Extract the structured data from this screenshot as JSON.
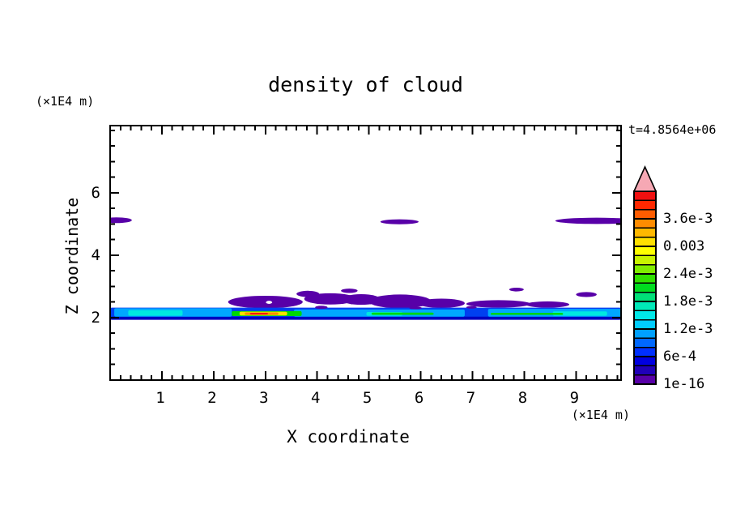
{
  "title": "density of cloud",
  "time_label": "t=4.8564e+06",
  "axes": {
    "x": {
      "label": "X coordinate",
      "unit": "(×1E4 m)",
      "min": 0,
      "max": 9.87,
      "major_ticks": [
        1,
        2,
        3,
        4,
        5,
        6,
        7,
        8,
        9
      ],
      "tick_labels": [
        "1",
        "2",
        "3",
        "4",
        "5",
        "6",
        "7",
        "8",
        "9"
      ],
      "minor_step": 0.2
    },
    "z": {
      "label": "Z coordinate",
      "unit": "(×1E4 m)",
      "min": 0,
      "max": 8.15,
      "major_ticks": [
        2,
        4,
        6
      ],
      "tick_labels": [
        "2",
        "4",
        "6"
      ],
      "minor_step": 0.5
    }
  },
  "colorbar": {
    "labels": [
      "1e-16",
      "6e-4",
      "1.2e-3",
      "1.8e-3",
      "2.4e-3",
      "0.003",
      "3.6e-3"
    ],
    "label_every_n_segments": 3,
    "segments_bottom_to_top": [
      "#5800A8",
      "#2000B8",
      "#0000E0",
      "#0030FF",
      "#0068FF",
      "#00A0FF",
      "#00CCFF",
      "#00E8E8",
      "#00E8B8",
      "#00E078",
      "#00DC20",
      "#30E000",
      "#80EC00",
      "#C8F400",
      "#FFFF00",
      "#FFE000",
      "#FFB800",
      "#FF8C00",
      "#FF5C00",
      "#FF2800",
      "#F01010"
    ],
    "overflow_arrow_color": "#F6A8B4",
    "outline_color": "#000000"
  },
  "chart_data": {
    "type": "filled_contour",
    "title": "density of cloud",
    "xlabel": "X coordinate",
    "ylabel": "Z coordinate",
    "units": "×1E4 m",
    "time": "t=4.8564e+06",
    "xlim": [
      0,
      9.87
    ],
    "ylim": [
      0,
      8.15
    ],
    "grid": false,
    "contour_levels_labeled": [
      "1e-16",
      "6e-4",
      "1.2e-3",
      "1.8e-3",
      "2.4e-3",
      "0.003",
      "3.6e-3"
    ],
    "features": [
      {
        "type": "ellipse",
        "name": "upper-cloud-left",
        "cx": 0.12,
        "cz": 5.12,
        "rx": 0.3,
        "rz": 0.09,
        "color": "#5800A8"
      },
      {
        "type": "ellipse",
        "name": "upper-cloud-mid",
        "cx": 5.59,
        "cz": 5.07,
        "rx": 0.37,
        "rz": 0.08,
        "color": "#5800A8"
      },
      {
        "type": "ellipse",
        "name": "upper-cloud-right",
        "cx": 9.4,
        "cz": 5.1,
        "rx": 0.8,
        "rz": 0.1,
        "color": "#5800A8"
      },
      {
        "type": "ellipse",
        "name": "band-cap",
        "cx": 3.0,
        "cz": 2.5,
        "rx": 0.72,
        "rz": 0.2,
        "color": "#5800A8"
      },
      {
        "type": "ellipse",
        "name": "band-cap",
        "cx": 4.25,
        "cz": 2.6,
        "rx": 0.5,
        "rz": 0.18,
        "color": "#5800A8"
      },
      {
        "type": "ellipse",
        "name": "band-cap",
        "cx": 3.82,
        "cz": 2.76,
        "rx": 0.22,
        "rz": 0.1,
        "color": "#5800A8"
      },
      {
        "type": "ellipse",
        "name": "band-cap",
        "cx": 4.85,
        "cz": 2.58,
        "rx": 0.38,
        "rz": 0.17,
        "color": "#5800A8"
      },
      {
        "type": "ellipse",
        "name": "band-cap",
        "cx": 5.6,
        "cz": 2.52,
        "rx": 0.6,
        "rz": 0.22,
        "color": "#5800A8"
      },
      {
        "type": "ellipse",
        "name": "band-cap",
        "cx": 6.4,
        "cz": 2.46,
        "rx": 0.45,
        "rz": 0.15,
        "color": "#5800A8"
      },
      {
        "type": "ellipse",
        "name": "band-cap",
        "cx": 7.5,
        "cz": 2.44,
        "rx": 0.62,
        "rz": 0.12,
        "color": "#5800A8"
      },
      {
        "type": "ellipse",
        "name": "band-cap",
        "cx": 8.45,
        "cz": 2.42,
        "rx": 0.42,
        "rz": 0.1,
        "color": "#5800A8"
      },
      {
        "type": "ellipse",
        "name": "band-cap",
        "cx": 9.2,
        "cz": 2.74,
        "rx": 0.2,
        "rz": 0.08,
        "color": "#5800A8"
      },
      {
        "type": "ellipse",
        "name": "band-cap",
        "cx": 7.85,
        "cz": 2.9,
        "rx": 0.14,
        "rz": 0.06,
        "color": "#5800A8"
      },
      {
        "type": "ellipse",
        "name": "band-cap",
        "cx": 4.62,
        "cz": 2.86,
        "rx": 0.16,
        "rz": 0.07,
        "color": "#5800A8"
      },
      {
        "type": "rect",
        "name": "band-body",
        "x0": 0,
        "x1": 9.87,
        "z0": 1.95,
        "z1": 2.32,
        "color": "#0040F0"
      },
      {
        "type": "rect",
        "name": "band-base",
        "x0": 0,
        "x1": 9.87,
        "z0": 1.93,
        "z1": 2.03,
        "color": "#0000C0"
      },
      {
        "type": "rect",
        "name": "band-cyan",
        "x0": 0.08,
        "x1": 2.35,
        "z0": 2.03,
        "z1": 2.3,
        "color": "#00A8FF"
      },
      {
        "type": "rect",
        "name": "band-cyan",
        "x0": 3.55,
        "x1": 6.85,
        "z0": 2.03,
        "z1": 2.26,
        "color": "#00A8FF"
      },
      {
        "type": "rect",
        "name": "band-cyan",
        "x0": 7.3,
        "x1": 9.87,
        "z0": 2.03,
        "z1": 2.28,
        "color": "#00A8FF"
      },
      {
        "type": "rect",
        "name": "band-bright-cyan",
        "x0": 0.35,
        "x1": 1.4,
        "z0": 2.06,
        "z1": 2.24,
        "color": "#00E8E0"
      },
      {
        "type": "rect",
        "name": "band-bright-cyan",
        "x0": 4.95,
        "x1": 5.65,
        "z0": 2.06,
        "z1": 2.18,
        "color": "#00E8E0"
      },
      {
        "type": "rect",
        "name": "band-bright-cyan",
        "x0": 8.55,
        "x1": 9.6,
        "z0": 2.06,
        "z1": 2.2,
        "color": "#00E8E0"
      },
      {
        "type": "rect",
        "name": "band-green",
        "x0": 2.35,
        "x1": 3.7,
        "z0": 2.05,
        "z1": 2.21,
        "color": "#00D800"
      },
      {
        "type": "rect",
        "name": "band-green",
        "x0": 5.05,
        "x1": 6.25,
        "z0": 2.09,
        "z1": 2.16,
        "color": "#00D800"
      },
      {
        "type": "rect",
        "name": "band-green",
        "x0": 7.35,
        "x1": 8.75,
        "z0": 2.09,
        "z1": 2.15,
        "color": "#00D800"
      },
      {
        "type": "rect",
        "name": "band-yellow-core",
        "x0": 2.5,
        "x1": 3.42,
        "z0": 2.07,
        "z1": 2.19,
        "color": "#FFE000"
      },
      {
        "type": "rect",
        "name": "band-orange-core",
        "x0": 2.6,
        "x1": 3.25,
        "z0": 2.085,
        "z1": 2.165,
        "color": "#FF8C00"
      },
      {
        "type": "rect",
        "name": "band-red-core",
        "x0": 2.7,
        "x1": 3.05,
        "z0": 2.1,
        "z1": 2.15,
        "color": "#F01010"
      },
      {
        "type": "ellipse",
        "name": "band-speckle",
        "cx": 4.08,
        "cz": 2.33,
        "rx": 0.12,
        "rz": 0.05,
        "color": "#5800A8"
      },
      {
        "type": "ellipse",
        "name": "band-speckle",
        "cx": 5.9,
        "cz": 2.31,
        "rx": 0.12,
        "rz": 0.04,
        "color": "#5800A8"
      },
      {
        "type": "ellipse",
        "name": "band-speckle",
        "cx": 6.98,
        "cz": 2.33,
        "rx": 0.1,
        "rz": 0.04,
        "color": "#5800A8"
      },
      {
        "type": "ellipse",
        "name": "band-hole",
        "cx": 3.07,
        "cz": 2.49,
        "rx": 0.06,
        "rz": 0.05,
        "color": "#FFFFFF"
      }
    ]
  }
}
